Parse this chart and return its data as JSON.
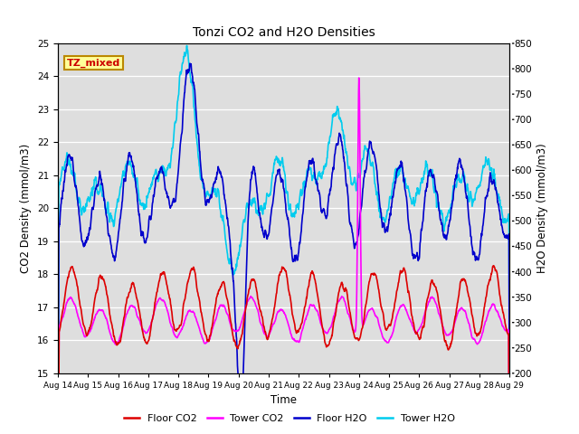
{
  "title": "Tonzi CO2 and H2O Densities",
  "xlabel": "Time",
  "ylabel_left": "CO2 Density (mmol/m3)",
  "ylabel_right": "H2O Density (mmol/m3)",
  "annotation": "TZ_mixed",
  "annotation_color": "#cc0000",
  "annotation_bg": "#ffff99",
  "annotation_border": "#bb8800",
  "ylim_left": [
    15.0,
    25.0
  ],
  "ylim_right": [
    200,
    850
  ],
  "yticks_left": [
    15.0,
    16.0,
    17.0,
    18.0,
    19.0,
    20.0,
    21.0,
    22.0,
    23.0,
    24.0,
    25.0
  ],
  "yticks_right": [
    200,
    250,
    300,
    350,
    400,
    450,
    500,
    550,
    600,
    650,
    700,
    750,
    800,
    850
  ],
  "xtick_labels": [
    "Aug 14",
    "Aug 15",
    "Aug 16",
    "Aug 17",
    "Aug 18",
    "Aug 19",
    "Aug 20",
    "Aug 21",
    "Aug 22",
    "Aug 23",
    "Aug 24",
    "Aug 25",
    "Aug 26",
    "Aug 27",
    "Aug 28",
    "Aug 29"
  ],
  "colors": {
    "floor_co2": "#dd0000",
    "tower_co2": "#ff00ff",
    "floor_h2o": "#0000cc",
    "tower_h2o": "#00ccee"
  },
  "legend_labels": [
    "Floor CO2",
    "Tower CO2",
    "Floor H2O",
    "Tower H2O"
  ],
  "bg_color": "#dedede",
  "fig_bg_color": "#ffffff",
  "linewidth": 1.2
}
